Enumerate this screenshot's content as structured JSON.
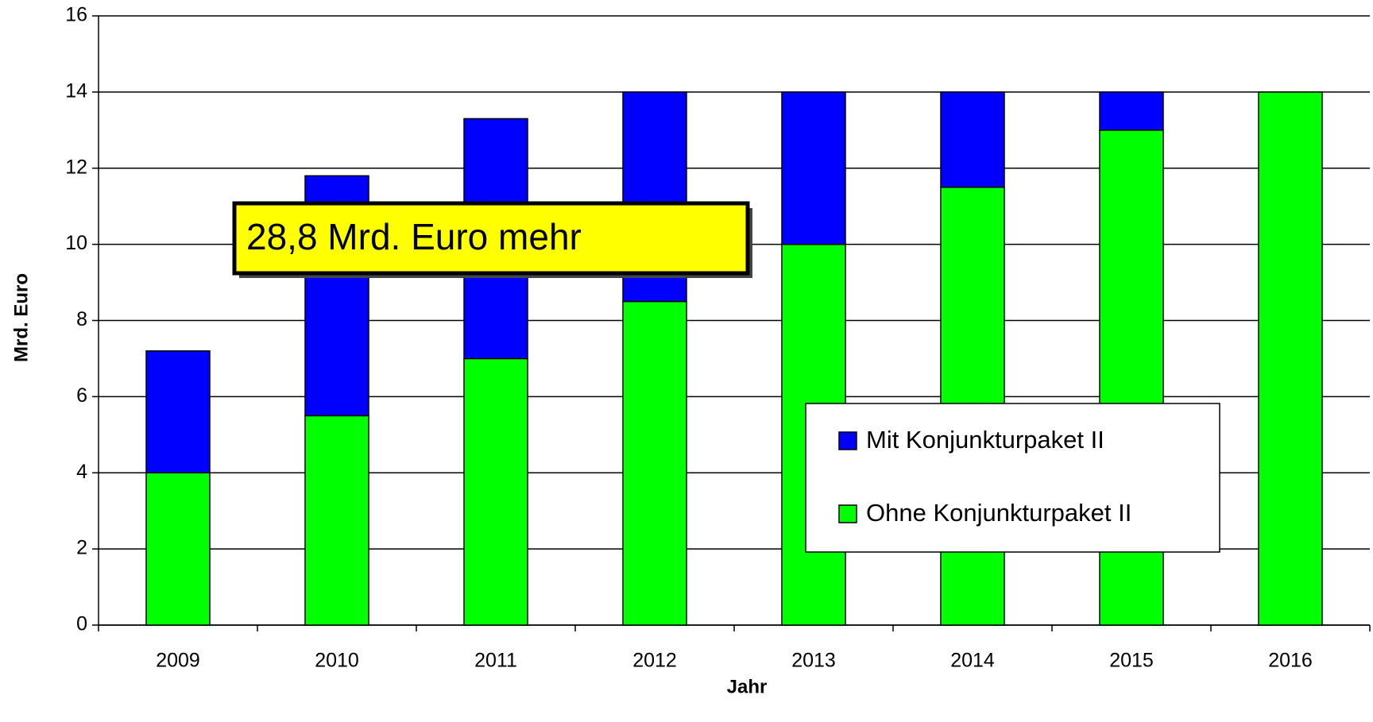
{
  "chart_data": {
    "type": "stacked_bar",
    "xlabel": "Jahr",
    "ylabel": "Mrd. Euro",
    "annotation": "28,8 Mrd. Euro mehr",
    "categories": [
      "2009",
      "2010",
      "2011",
      "2012",
      "2013",
      "2014",
      "2015",
      "2016"
    ],
    "series": [
      {
        "name": "Ohne Konjunkturpaket II",
        "color": "#00ff00",
        "values": [
          4,
          5.5,
          7,
          8.5,
          10,
          11.5,
          13,
          14
        ]
      },
      {
        "name": "Mit Konjunkturpaket II",
        "color": "#0000ff",
        "values": [
          3.2,
          6.3,
          6.3,
          5.5,
          4,
          2.5,
          1,
          0
        ]
      }
    ],
    "ylim": [
      0,
      16
    ],
    "yticks": [
      0,
      2,
      4,
      6,
      8,
      10,
      12,
      14,
      16
    ],
    "grid": true
  }
}
